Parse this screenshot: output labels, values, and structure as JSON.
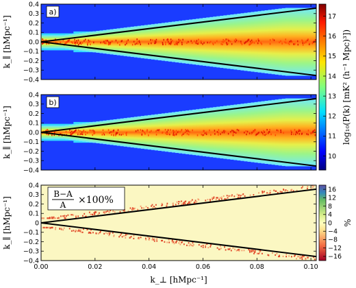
{
  "chart_data": [
    {
      "type": "heatmap",
      "panel": "a)",
      "xlim": [
        0,
        0.102
      ],
      "ylim": [
        -0.4,
        0.4
      ],
      "yticks": [
        -0.4,
        -0.3,
        -0.2,
        -0.1,
        0.0,
        0.1,
        0.2,
        0.3,
        0.4
      ],
      "ylabel": "k_∥ [hMpc⁻¹]",
      "wedge_line_slope": 3.5,
      "colorbar": {
        "label": "log₁₀(P(k) [mK² (h⁻¹ Mpc)³])",
        "ticks": [
          10,
          11,
          12,
          13,
          14,
          15,
          16,
          17
        ],
        "range": [
          9.3,
          17.6
        ],
        "colormap": "jet"
      }
    },
    {
      "type": "heatmap",
      "panel": "b)",
      "xlim": [
        0,
        0.102
      ],
      "ylim": [
        -0.4,
        0.4
      ],
      "yticks": [
        -0.4,
        -0.3,
        -0.2,
        -0.1,
        0.0,
        0.1,
        0.2,
        0.3,
        0.4
      ],
      "ylabel": "k_∥ [hMpc⁻¹]",
      "wedge_line_slope": 3.5
    },
    {
      "type": "heatmap",
      "panel": "difference",
      "annotation": {
        "numerator": "B−A",
        "denominator": "A",
        "suffix": "×100%"
      },
      "xlim": [
        0,
        0.102
      ],
      "ylim": [
        -0.4,
        0.4
      ],
      "xticks": [
        0.0,
        0.02,
        0.04,
        0.06,
        0.08,
        0.1
      ],
      "xticklabels": [
        "0.00",
        "0.02",
        "0.04",
        "0.06",
        "0.08",
        "0.10"
      ],
      "yticks": [
        -0.4,
        -0.3,
        -0.2,
        -0.1,
        0,
        0.1,
        0.2,
        0.3,
        0.4
      ],
      "ylabel": "k_∥ [hMpc⁻¹]",
      "xlabel": "k_⊥ [hMpc⁻¹]",
      "wedge_line_slope": 3.5,
      "colorbar": {
        "label": "%",
        "ticks": [
          16,
          12,
          8,
          4,
          0,
          -4,
          -8,
          -12,
          -16
        ],
        "range": [
          -18,
          18
        ],
        "colormap": "diverging"
      }
    }
  ]
}
